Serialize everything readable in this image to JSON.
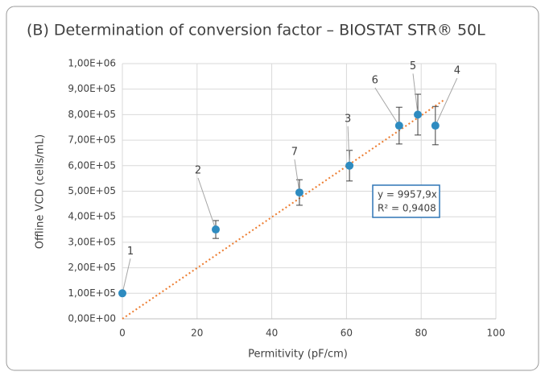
{
  "chart_data": {
    "type": "scatter",
    "title": "(B) Determination of conversion factor – BIOSTAT STR® 50L",
    "x_label": "Permitivity (pF/cm)",
    "y_label": "Offline VCD (cells/mL)",
    "xlim": [
      0,
      100
    ],
    "xticks": [
      0,
      20,
      40,
      60,
      80,
      100
    ],
    "ylim": [
      0,
      1000000
    ],
    "yticks": [
      {
        "value": 0,
        "label": "0,00E+00"
      },
      {
        "value": 100000,
        "label": "1,00E+05"
      },
      {
        "value": 200000,
        "label": "2,00E+05"
      },
      {
        "value": 300000,
        "label": "3,00E+05"
      },
      {
        "value": 400000,
        "label": "4,00E+05"
      },
      {
        "value": 500000,
        "label": "5,00E+05"
      },
      {
        "value": 600000,
        "label": "6,00E+05"
      },
      {
        "value": 700000,
        "label": "7,00E+05"
      },
      {
        "value": 800000,
        "label": "8,00E+05"
      },
      {
        "value": 900000,
        "label": "9,00E+05"
      },
      {
        "value": 1000000,
        "label": "1,00E+06"
      }
    ],
    "grid": true,
    "series": [
      {
        "color": "#2e8bc0",
        "point_labels": [
          "1",
          "2",
          "7",
          "3",
          "6",
          "5",
          "4"
        ],
        "x": [
          0,
          25,
          47.4,
          60.8,
          74.1,
          79.1,
          83.8
        ],
        "values": [
          100000,
          350000,
          495000,
          600000,
          757000,
          800000,
          757000
        ],
        "errors": [
          5000,
          35000,
          50000,
          60000,
          72000,
          80000,
          75000
        ]
      }
    ],
    "trendline": {
      "slope": 9957.9,
      "x_range": [
        0,
        86
      ],
      "color": "#ed7d31"
    },
    "annotations": [
      "y = 9957,9x",
      "R² = 0,9408"
    ]
  }
}
